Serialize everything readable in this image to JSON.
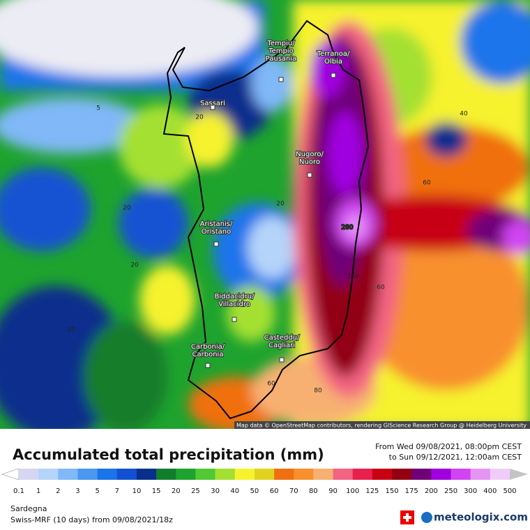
{
  "map": {
    "cities": [
      {
        "lines": [
          "Tempiu/",
          "Tempio",
          "Pausania"
        ]
      },
      {
        "lines": [
          "Terranoa/",
          "Olbia"
        ]
      },
      {
        "lines": [
          "Sassari"
        ]
      },
      {
        "lines": [
          "Nugoro/",
          "Nuoro"
        ]
      },
      {
        "lines": [
          "Aristanis/",
          "Oristano"
        ]
      },
      {
        "lines": [
          "Biddacidru/",
          "Villacidro"
        ]
      },
      {
        "lines": [
          "Casteddu/",
          "Cagliari"
        ]
      },
      {
        "lines": [
          "Carbonia/",
          "Carbonia"
        ]
      }
    ],
    "contour_labels": [
      "5",
      "20",
      "40",
      "60",
      "20",
      "20",
      "20",
      "20",
      "60",
      "150",
      "280",
      "60",
      "80"
    ],
    "attribution": "Map data © OpenStreetMap contributors, rendering GIScience Research Group @ Heidelberg University"
  },
  "legend": {
    "title": "Accumulated total precipitation (mm)",
    "period_from": "From Wed 09/08/2021, 08:00pm CEST",
    "period_to": "to Sun 09/12/2021, 12:00am CEST",
    "ticks": [
      0.1,
      1,
      2,
      3,
      5,
      7,
      10,
      15,
      20,
      25,
      30,
      40,
      50,
      60,
      70,
      80,
      90,
      100,
      125,
      150,
      175,
      200,
      250,
      300,
      400,
      500
    ],
    "colors": [
      "#ffffff",
      "#d6d6f2",
      "#b4d4fa",
      "#80b8f8",
      "#4a98f0",
      "#1a74ea",
      "#1252d2",
      "#082f8c",
      "#127d2c",
      "#1ea32e",
      "#52c934",
      "#a4e032",
      "#f6f22e",
      "#e2d220",
      "#f07010",
      "#f8902e",
      "#f8b072",
      "#f26482",
      "#e8204e",
      "#c80012",
      "#920012",
      "#700078",
      "#a000e0",
      "#d044f2",
      "#e494f4",
      "#f2ccf8",
      "#c4c4c4"
    ]
  },
  "footer": {
    "region": "Sardegna",
    "model": "Swiss-MRF (10 days)  from  09/08/2021/18z",
    "brand": "meteologix.com"
  }
}
